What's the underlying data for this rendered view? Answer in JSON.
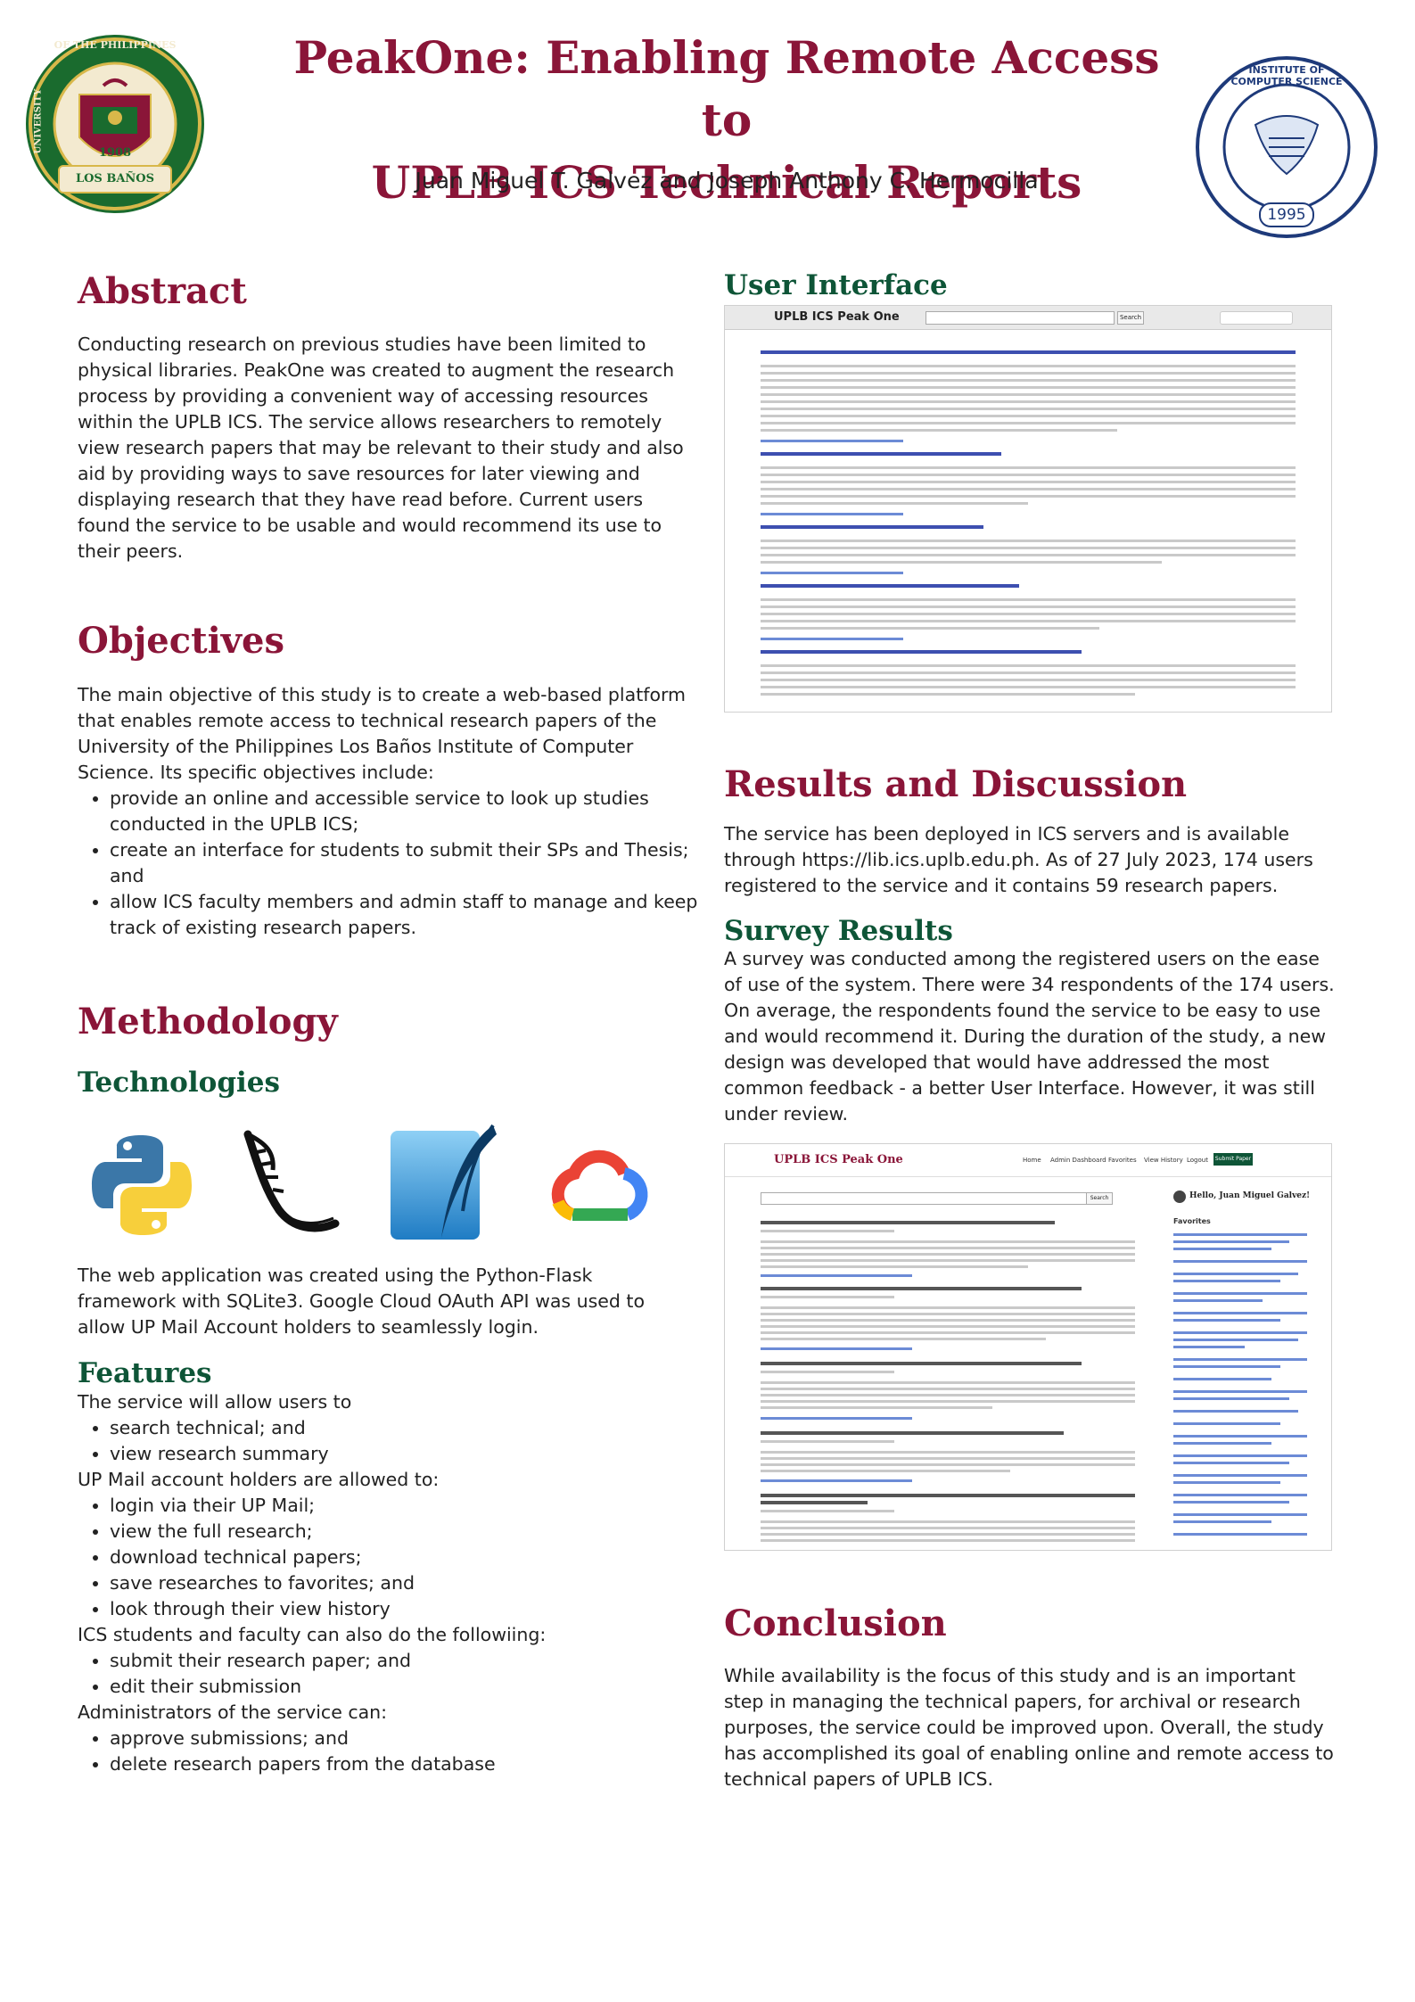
{
  "header": {
    "title_line1": "PeakOne: Enabling Remote Access to",
    "title_line2": "UPLB ICS Technical Reports",
    "authors": "Juan Miguel T. Galvez and Joseph Anthony C. Hermocilla"
  },
  "logos": {
    "left": {
      "text_top": "OF THE PHILIPPINES",
      "text_left": "UNIVERSITY",
      "year": "1908",
      "banner": "LOS BAÑOS"
    },
    "right": {
      "ring_text": "INSTITUTE OF COMPUTER SCIENCE",
      "year": "1995"
    }
  },
  "abstract": {
    "heading": "Abstract",
    "text": "Conducting research on previous studies have been limited to physical libraries. PeakOne was created to augment the research process by providing a convenient way of accessing resources within the UPLB ICS. The service allows researchers to remotely view research papers that may be relevant to their study and also aid by providing ways to save resources for later viewing and displaying research that they have read before. Current users found the service to be usable and would recommend its use to their peers."
  },
  "objectives": {
    "heading": "Objectives",
    "intro": "The main objective of this study is to create a web-based platform that enables remote access to technical research papers of the University of the Philippines Los Baños Institute of Computer Science. Its specific objectives include:",
    "items": [
      "provide an online and accessible service to look up studies conducted in the UPLB ICS;",
      "create an interface for students to submit their SPs and Thesis; and",
      "allow ICS faculty members and admin staff to manage and keep track of existing research papers."
    ]
  },
  "methodology": {
    "heading": "Methodology",
    "tech_heading": "Technologies",
    "tech_icons": [
      "python-icon",
      "flask-icon",
      "sqlite-icon",
      "google-cloud-icon"
    ],
    "tech_text": "The web application was created using the Python-Flask framework with SQLite3. Google Cloud OAuth API was used to allow UP Mail Account holders to seamlessly login.",
    "features_heading": "Features",
    "groups": [
      {
        "intro": "The service will allow users to",
        "items": [
          "search technical; and",
          "view research summary"
        ]
      },
      {
        "intro": "UP Mail account holders are allowed to:",
        "items": [
          "login via their UP Mail;",
          "view the full research;",
          "download technical papers;",
          "save researches to favorites; and",
          "look through their view history"
        ]
      },
      {
        "intro": "ICS students and faculty can also do the followiing:",
        "items": [
          "submit their research paper; and",
          "edit their submission"
        ]
      },
      {
        "intro": "Administrators of the service can:",
        "items": [
          "approve submissions; and",
          "delete research papers from the database"
        ]
      }
    ]
  },
  "ui": {
    "heading": "User Interface",
    "screenshot1": {
      "brand": "UPLB ICS Peak One",
      "search_btn": "Search"
    },
    "screenshot2": {
      "brand": "UPLB ICS Peak One",
      "nav": [
        "Home",
        "Admin Dashboard",
        "Favorites",
        "View History",
        "Logout"
      ],
      "submit": "Submit Paper",
      "search_btn": "Search",
      "greeting": "Hello, Juan Miguel Galvez!",
      "favorites": "Favorites"
    }
  },
  "results": {
    "heading": "Results and Discussion",
    "text": "The service has been deployed in ICS servers and is available through https://lib.ics.uplb.edu.ph. As of 27 July 2023, 174 users registered to the service and it contains 59 research papers.",
    "survey_heading": "Survey Results",
    "survey_text": "A survey was conducted among the registered users on the ease of use of the system. There were 34 respondents of the 174 users. On average, the respondents found the service to be easy to use and would recommend it. During the duration of the study, a new design was developed that would have addressed the most common feedback - a better User Interface.  However, it was still under review."
  },
  "conclusion": {
    "heading": "Conclusion",
    "text": "While availability is the focus of this study and is an important step in managing the technical papers, for archival or research purposes, the service could be improved upon. Overall, the study has accomplished its goal of enabling online and remote access to technical papers of UPLB ICS."
  },
  "colors": {
    "maroon": "#8a1538",
    "green": "#0e5537"
  }
}
